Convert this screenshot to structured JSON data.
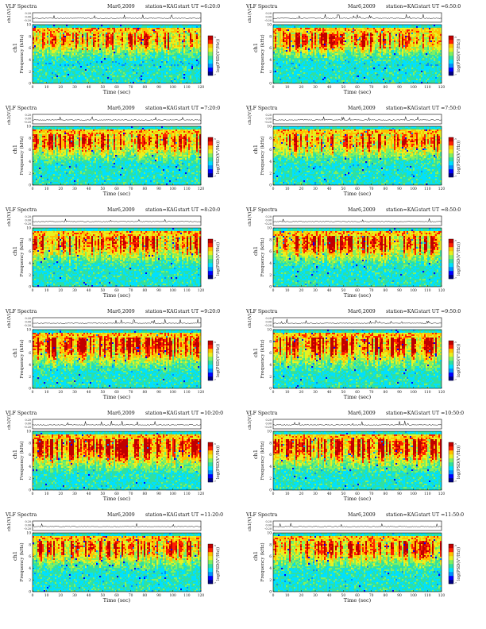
{
  "colors": {
    "scale": [
      "#000080",
      "#0000ff",
      "#0090ff",
      "#00e0ff",
      "#30e0a0",
      "#80f060",
      "#e8f020",
      "#ffc000",
      "#ff2000",
      "#c00000"
    ],
    "band": "#30d8e8",
    "text": "#111111"
  },
  "chart_data": [
    {
      "type": "heatmap",
      "title": "VLF Spectra",
      "date": "Mar6,2009",
      "station": "station=KAG",
      "start": "start UT =6:20:0",
      "ch1_label": "ch1(V)",
      "ch1_ticks": [
        "0.20",
        "0.00",
        "-0.20"
      ],
      "ylabel": "Frequency (kHz)",
      "channel_label": "ch1",
      "xlabel": "Time (sec)",
      "x_ticks": [
        0,
        10,
        20,
        30,
        40,
        50,
        60,
        70,
        80,
        90,
        100,
        110,
        120
      ],
      "y_ticks": [
        0,
        2,
        4,
        6,
        8,
        10
      ],
      "xlim": [
        0,
        120
      ],
      "ylim": [
        0,
        10
      ],
      "colorbar_label": "log(PSD(V²/Hz))",
      "colorbar_ticks": [
        "-5",
        "-7"
      ],
      "intensity": 0.35
    },
    {
      "type": "heatmap",
      "title": "VLF Spectra",
      "date": "Mar6,2009",
      "station": "station=KAG",
      "start": "start UT =6:50:0",
      "ch1_label": "ch1(V)",
      "ch1_ticks": [
        "0.20",
        "0.00",
        "-0.20"
      ],
      "ylabel": "Frequency (kHz)",
      "channel_label": "ch1",
      "xlabel": "Time (sec)",
      "x_ticks": [
        0,
        10,
        20,
        30,
        40,
        50,
        60,
        70,
        80,
        90,
        100,
        110,
        120
      ],
      "y_ticks": [
        0,
        2,
        4,
        6,
        8,
        10
      ],
      "xlim": [
        0,
        120
      ],
      "ylim": [
        0,
        10
      ],
      "colorbar_label": "log(PSD(V²/Hz))",
      "colorbar_ticks": [
        "-5",
        "-7"
      ],
      "intensity": 0.4
    },
    {
      "type": "heatmap",
      "title": "VLF Spectra",
      "date": "Mar6,2009",
      "station": "station=KAG",
      "start": "start UT =7:20:0",
      "ch1_label": "ch1(V)",
      "ch1_ticks": [
        "0.20",
        "0.00",
        "-0.20"
      ],
      "ylabel": "Frequency (kHz)",
      "channel_label": "ch1",
      "xlabel": "Time (sec)",
      "x_ticks": [
        0,
        10,
        20,
        30,
        40,
        50,
        60,
        70,
        80,
        90,
        100,
        110,
        120
      ],
      "y_ticks": [
        0,
        2,
        4,
        6,
        8,
        10
      ],
      "xlim": [
        0,
        120
      ],
      "ylim": [
        0,
        10
      ],
      "colorbar_label": "log(PSD(V²/Hz))",
      "colorbar_ticks": [
        "-5",
        "-7"
      ],
      "intensity": 0.45
    },
    {
      "type": "heatmap",
      "title": "VLF Spectra",
      "date": "Mar6,2009",
      "station": "station=KAG",
      "start": "start UT =7:50:0",
      "ch1_label": "ch1(V)",
      "ch1_ticks": [
        "0.20",
        "0.00",
        "-0.20"
      ],
      "ylabel": "Frequency (kHz)",
      "channel_label": "ch1",
      "xlabel": "Time (sec)",
      "x_ticks": [
        0,
        10,
        20,
        30,
        40,
        50,
        60,
        70,
        80,
        90,
        100,
        110,
        120
      ],
      "y_ticks": [
        0,
        2,
        4,
        6,
        8,
        10
      ],
      "xlim": [
        0,
        120
      ],
      "ylim": [
        0,
        10
      ],
      "colorbar_label": "log(PSD(V²/Hz))",
      "colorbar_ticks": [
        "-5",
        "-7"
      ],
      "intensity": 0.45
    },
    {
      "type": "heatmap",
      "title": "VLF Spectra",
      "date": "Mar6,2009",
      "station": "station=KAG",
      "start": "start UT =8:20:0",
      "ch1_label": "ch1(V)",
      "ch1_ticks": [
        "0.20",
        "0.00",
        "-0.20"
      ],
      "ylabel": "Frequency (kHz)",
      "channel_label": "ch1",
      "xlabel": "Time (sec)",
      "x_ticks": [
        0,
        10,
        20,
        30,
        40,
        50,
        60,
        70,
        80,
        90,
        100,
        110,
        120
      ],
      "y_ticks": [
        0,
        2,
        4,
        6,
        8,
        10
      ],
      "xlim": [
        0,
        120
      ],
      "ylim": [
        0,
        10
      ],
      "colorbar_label": "log(PSD(V²/Hz))",
      "colorbar_ticks": [
        "-5",
        "-7"
      ],
      "intensity": 0.5
    },
    {
      "type": "heatmap",
      "title": "VLF Spectra",
      "date": "Mar6,2009",
      "station": "station=KAG",
      "start": "start UT =8:50:0",
      "ch1_label": "ch1(V)",
      "ch1_ticks": [
        "0.20",
        "0.00",
        "-0.20"
      ],
      "ylabel": "Frequency (kHz)",
      "channel_label": "ch1",
      "xlabel": "Time (sec)",
      "x_ticks": [
        0,
        10,
        20,
        30,
        40,
        50,
        60,
        70,
        80,
        90,
        100,
        110,
        120
      ],
      "y_ticks": [
        0,
        2,
        4,
        6,
        8,
        10
      ],
      "xlim": [
        0,
        120
      ],
      "ylim": [
        0,
        10
      ],
      "colorbar_label": "log(PSD(V²/Hz))",
      "colorbar_ticks": [
        "-5",
        "-7"
      ],
      "intensity": 0.5
    },
    {
      "type": "heatmap",
      "title": "VLF Spectra",
      "date": "Mar6,2009",
      "station": "station=KAG",
      "start": "start UT =9:20:0",
      "ch1_label": "ch1(V)",
      "ch1_ticks": [
        "0.20",
        "0.00",
        "-0.20"
      ],
      "ylabel": "Frequency (kHz)",
      "channel_label": "ch1",
      "xlabel": "Time (sec)",
      "x_ticks": [
        0,
        10,
        20,
        30,
        40,
        50,
        60,
        70,
        80,
        90,
        100,
        110,
        120
      ],
      "y_ticks": [
        0,
        2,
        4,
        6,
        8,
        10
      ],
      "xlim": [
        0,
        120
      ],
      "ylim": [
        0,
        10
      ],
      "colorbar_label": "log(PSD(V²/Hz))",
      "colorbar_ticks": [
        "-5",
        "-7"
      ],
      "intensity": 0.65
    },
    {
      "type": "heatmap",
      "title": "VLF Spectra",
      "date": "Mar6,2009",
      "station": "station=KAG",
      "start": "start UT =9:50:0",
      "ch1_label": "ch1(V)",
      "ch1_ticks": [
        "0.20",
        "0.00",
        "-0.20"
      ],
      "ylabel": "Frequency (kHz)",
      "channel_label": "ch1",
      "xlabel": "Time (sec)",
      "x_ticks": [
        0,
        10,
        20,
        30,
        40,
        50,
        60,
        70,
        80,
        90,
        100,
        110,
        120
      ],
      "y_ticks": [
        0,
        2,
        4,
        6,
        8,
        10
      ],
      "xlim": [
        0,
        120
      ],
      "ylim": [
        0,
        10
      ],
      "colorbar_label": "log(PSD(V²/Hz))",
      "colorbar_ticks": [
        "-5",
        "-7"
      ],
      "intensity": 0.65
    },
    {
      "type": "heatmap",
      "title": "VLF Spectra",
      "date": "Mar6,2009",
      "station": "station=KAG",
      "start": "start UT =10:20:0",
      "ch1_label": "ch1(V)",
      "ch1_ticks": [
        "0.20",
        "0.00",
        "-0.20"
      ],
      "ylabel": "Frequency (kHz)",
      "channel_label": "ch1",
      "xlabel": "Time (sec)",
      "x_ticks": [
        0,
        10,
        20,
        30,
        40,
        50,
        60,
        70,
        80,
        90,
        100,
        110,
        120
      ],
      "y_ticks": [
        0,
        2,
        4,
        6,
        8,
        10
      ],
      "xlim": [
        0,
        120
      ],
      "ylim": [
        0,
        10
      ],
      "colorbar_label": "log(PSD(V²/Hz))",
      "colorbar_ticks": [
        "-5",
        "-7"
      ],
      "intensity": 0.7
    },
    {
      "type": "heatmap",
      "title": "VLF Spectra",
      "date": "Mar6,2009",
      "station": "station=KAG",
      "start": "start UT =10:50:0",
      "ch1_label": "ch1(V)",
      "ch1_ticks": [
        "0.20",
        "0.00",
        "-0.20"
      ],
      "ylabel": "Frequency (kHz)",
      "channel_label": "ch1",
      "xlabel": "Time (sec)",
      "x_ticks": [
        0,
        10,
        20,
        30,
        40,
        50,
        60,
        70,
        80,
        90,
        100,
        110,
        120
      ],
      "y_ticks": [
        0,
        2,
        4,
        6,
        8,
        10
      ],
      "xlim": [
        0,
        120
      ],
      "ylim": [
        0,
        10
      ],
      "colorbar_label": "log(PSD(V²/Hz))",
      "colorbar_ticks": [
        "-5",
        "-7"
      ],
      "intensity": 0.7
    },
    {
      "type": "heatmap",
      "title": "VLF Spectra",
      "date": "Mar6,2009",
      "station": "station=KAG",
      "start": "start UT =11:20:0",
      "ch1_label": "ch1(V)",
      "ch1_ticks": [
        "0.20",
        "0.00",
        "-0.20"
      ],
      "ylabel": "Frequency (kHz)",
      "channel_label": "ch1",
      "xlabel": "Time (sec)",
      "x_ticks": [
        0,
        10,
        20,
        30,
        40,
        50,
        60,
        70,
        80,
        90,
        100,
        110,
        120
      ],
      "y_ticks": [
        0,
        2,
        4,
        6,
        8,
        10
      ],
      "xlim": [
        0,
        120
      ],
      "ylim": [
        0,
        10
      ],
      "colorbar_label": "log(PSD(V²/Hz))",
      "colorbar_ticks": [
        "-5",
        "-7"
      ],
      "intensity": 0.5
    },
    {
      "type": "heatmap",
      "title": "VLF Spectra",
      "date": "Mar6,2009",
      "station": "station=KAG",
      "start": "start UT =11:50:0",
      "ch1_label": "ch1(V)",
      "ch1_ticks": [
        "0.20",
        "0.00",
        "-0.20"
      ],
      "ylabel": "Frequency (kHz)",
      "channel_label": "ch1",
      "xlabel": "Time (sec)",
      "x_ticks": [
        0,
        10,
        20,
        30,
        40,
        50,
        60,
        70,
        80,
        90,
        100,
        110,
        120
      ],
      "y_ticks": [
        0,
        2,
        4,
        6,
        8,
        10
      ],
      "xlim": [
        0,
        120
      ],
      "ylim": [
        0,
        10
      ],
      "colorbar_label": "log(PSD(V²/Hz))",
      "colorbar_ticks": [
        "-5",
        "-7"
      ],
      "intensity": 0.5
    }
  ]
}
